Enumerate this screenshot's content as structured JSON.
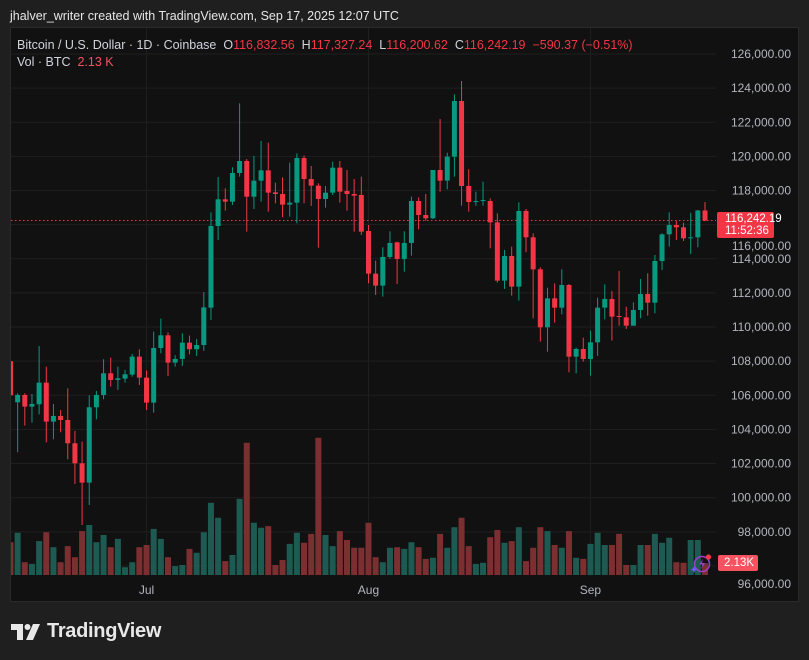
{
  "credit": "jhalver_writer created with TradingView.com, Sep 17, 2025 12:07 UTC",
  "legend": {
    "symbol": "Bitcoin / U.S. Dollar · 1D · Coinbase",
    "open_label": "O",
    "open": "116,832.56",
    "high_label": "H",
    "high": "117,327.24",
    "low_label": "L",
    "low": "116,200.62",
    "close_label": "C",
    "close": "116,242.19",
    "change": "−590.37 (−0.51%)",
    "volume_label": "Vol · BTC",
    "volume": "2.13 K"
  },
  "price_tag": {
    "price": "116,242.19",
    "countdown": "11:52:36"
  },
  "volume_tag": "2.13K",
  "brand": "TradingView",
  "colors": {
    "up": "#089981",
    "down": "#f23645",
    "vol_up": "#1d5b52",
    "vol_down": "#7c2f31",
    "background": "#111111"
  },
  "chart_data": {
    "type": "candlestick",
    "ylim": [
      95000,
      127200
    ],
    "y_ticks": [
      "126,000.00",
      "124,000.00",
      "122,000.00",
      "120,000.00",
      "118,000.00",
      "116,000.00",
      "114,000.00",
      "112,000.00",
      "110,000.00",
      "108,000.00",
      "106,000.00",
      "104,000.00",
      "102,000.00",
      "100,000.00",
      "98,000.00",
      "96,000.00"
    ],
    "y_tick_values": [
      126000,
      124000,
      122000,
      120000,
      118000,
      116000,
      114000,
      112000,
      110000,
      108000,
      106000,
      104000,
      102000,
      100000,
      98000,
      96000
    ],
    "x_ticks": [
      {
        "label": "Jul",
        "candle": 19
      },
      {
        "label": "Aug",
        "candle": 50
      },
      {
        "label": "Sep",
        "candle": 81
      }
    ],
    "last_price": 116242.19,
    "volume_unit": "K BTC",
    "ohlc": [
      [
        108000,
        108555,
        105625,
        106000
      ],
      [
        105590,
        106118,
        102661,
        106020
      ],
      [
        106020,
        106118,
        104223,
        105337
      ],
      [
        105337,
        106079,
        104399,
        105493
      ],
      [
        105473,
        108891,
        104887,
        106743
      ],
      [
        106743,
        107680,
        103247,
        104458
      ],
      [
        104458,
        105493,
        103423,
        104790
      ],
      [
        104790,
        105141,
        103833,
        104555
      ],
      [
        104555,
        106411,
        102251,
        103188
      ],
      [
        103188,
        103911,
        100806,
        102016
      ],
      [
        102016,
        103286,
        98400,
        100884
      ],
      [
        100884,
        106001,
        99575,
        105298
      ],
      [
        105298,
        106255,
        104595,
        106020
      ],
      [
        106020,
        108110,
        105766,
        107290
      ],
      [
        107290,
        108208,
        106508,
        106899
      ],
      [
        106899,
        107680,
        106313,
        106997
      ],
      [
        106977,
        107485,
        106743,
        107231
      ],
      [
        107211,
        108422,
        107094,
        108266
      ],
      [
        108266,
        108696,
        106606,
        107036
      ],
      [
        107036,
        107446,
        105141,
        105571
      ],
      [
        105571,
        109731,
        104985,
        108774
      ],
      [
        108774,
        110493,
        108462,
        109516
      ],
      [
        109516,
        109692,
        107133,
        107915
      ],
      [
        107915,
        108344,
        107680,
        108130
      ],
      [
        108130,
        109633,
        107719,
        109086
      ],
      [
        109086,
        109500,
        108400,
        108700
      ],
      [
        108700,
        109300,
        108300,
        108947
      ],
      [
        108947,
        112053,
        108600,
        111150
      ],
      [
        111137,
        116723,
        110414,
        115922
      ],
      [
        115922,
        118793,
        115102,
        117484
      ],
      [
        117484,
        118129,
        116820,
        117348
      ],
      [
        117348,
        119359,
        117152,
        119027
      ],
      [
        119027,
        123109,
        118812,
        119730
      ],
      [
        119730,
        119847,
        115590,
        117640
      ],
      [
        117640,
        120023,
        116918,
        118578
      ],
      [
        118578,
        120902,
        117348,
        119183
      ],
      [
        119183,
        120804,
        116762,
        117875
      ],
      [
        117894,
        118461,
        117250,
        117797
      ],
      [
        117797,
        118773,
        116430,
        117172
      ],
      [
        117172,
        119633,
        116469,
        117289
      ],
      [
        117289,
        120179,
        116078,
        119906
      ],
      [
        119906,
        120062,
        117250,
        118676
      ],
      [
        118676,
        119437,
        117094,
        118285
      ],
      [
        118285,
        118422,
        114652,
        117504
      ],
      [
        117504,
        118266,
        116996,
        117875
      ],
      [
        117875,
        119691,
        117738,
        119340
      ],
      [
        119340,
        119730,
        117289,
        117933
      ],
      [
        117973,
        119203,
        116820,
        117797
      ],
      [
        117797,
        118676,
        115590,
        117699
      ],
      [
        117738,
        118812,
        115395,
        115590
      ],
      [
        115629,
        115981,
        112563,
        113129
      ],
      [
        113129,
        113891,
        111879,
        112426
      ],
      [
        112426,
        114672,
        111781,
        114106
      ],
      [
        114106,
        115610,
        113989,
        114926
      ],
      [
        114965,
        115004,
        112524,
        113989
      ],
      [
        113989,
        115610,
        113246,
        114926
      ],
      [
        114926,
        117641,
        114184,
        117387
      ],
      [
        117387,
        117602,
        115727,
        116566
      ],
      [
        116566,
        117797,
        116234,
        116371
      ],
      [
        116371,
        119203,
        116332,
        119203
      ],
      [
        119203,
        122191,
        117934,
        118578
      ],
      [
        118578,
        120218,
        118070,
        119984
      ],
      [
        119984,
        123636,
        118812,
        123246
      ],
      [
        123246,
        124418,
        117113,
        118266
      ],
      [
        118266,
        119242,
        116762,
        117328
      ],
      [
        117328,
        117934,
        117113,
        117387
      ],
      [
        117387,
        118520,
        117113,
        117446
      ],
      [
        117387,
        117543,
        114614,
        116137
      ],
      [
        116137,
        116664,
        112602,
        112719
      ],
      [
        112719,
        114516,
        112231,
        114164
      ],
      [
        114164,
        114711,
        111840,
        112368
      ],
      [
        112368,
        117309,
        111547,
        116801
      ],
      [
        116801,
        116918,
        114379,
        115258
      ],
      [
        115258,
        115492,
        110512,
        113382
      ],
      [
        113382,
        113499,
        109144,
        109984
      ],
      [
        109984,
        112308,
        108558,
        111683
      ],
      [
        111683,
        112562,
        110257,
        111136
      ],
      [
        111136,
        113382,
        110745,
        112464
      ],
      [
        112464,
        112523,
        107347,
        108265
      ],
      [
        108265,
        108792,
        107289,
        108714
      ],
      [
        108714,
        109378,
        107972,
        108128
      ],
      [
        108128,
        109788,
        107152,
        109105
      ],
      [
        109105,
        111722,
        108304,
        111136
      ],
      [
        111136,
        112503,
        110452,
        111644
      ],
      [
        111644,
        112113,
        109203,
        110609
      ],
      [
        110648,
        113284,
        110081,
        110589
      ],
      [
        110570,
        111195,
        109886,
        110081
      ],
      [
        110081,
        111449,
        110081,
        111000
      ],
      [
        111000,
        112816,
        110511,
        111937
      ],
      [
        111937,
        113148,
        110667,
        111429
      ],
      [
        111429,
        114222,
        110804,
        113870
      ],
      [
        113870,
        115491,
        113343,
        115433
      ],
      [
        115433,
        116722,
        114710,
        115979
      ],
      [
        115979,
        116233,
        115101,
        115843
      ],
      [
        115843,
        116116,
        115042,
        115198
      ],
      [
        115198,
        116702,
        114280,
        115257
      ],
      [
        115257,
        116858,
        114671,
        116832.56
      ],
      [
        116832.56,
        117327.24,
        116200.62,
        116242.19
      ]
    ],
    "volume": [
      5.9,
      7.6,
      2.3,
      2.0,
      6.1,
      7.7,
      5.0,
      2.3,
      5.2,
      3.2,
      7.9,
      9.0,
      5.9,
      7.2,
      5.0,
      6.5,
      1.4,
      2.3,
      5.0,
      5.4,
      8.3,
      6.5,
      3.2,
      1.6,
      1.8,
      4.7,
      4.0,
      7.7,
      13.0,
      10.3,
      2.5,
      3.6,
      13.7,
      23.8,
      9.4,
      8.5,
      8.8,
      1.8,
      2.7,
      5.6,
      7.6,
      5.8,
      7.4,
      24.7,
      7.2,
      5.2,
      7.9,
      6.3,
      4.9,
      4.9,
      9.4,
      3.2,
      2.3,
      4.9,
      5.0,
      4.7,
      5.9,
      5.0,
      2.9,
      3.1,
      7.4,
      4.9,
      8.6,
      10.3,
      5.2,
      2.0,
      2.2,
      6.8,
      8.1,
      5.8,
      6.1,
      8.6,
      2.5,
      4.9,
      8.6,
      7.9,
      5.4,
      4.9,
      7.9,
      3.1,
      2.9,
      5.6,
      7.6,
      5.4,
      5.4,
      7.4,
      1.8,
      1.8,
      5.4,
      5.4,
      7.4,
      5.8,
      6.7,
      2.3,
      2.2,
      6.3,
      6.3,
      2.13
    ]
  }
}
